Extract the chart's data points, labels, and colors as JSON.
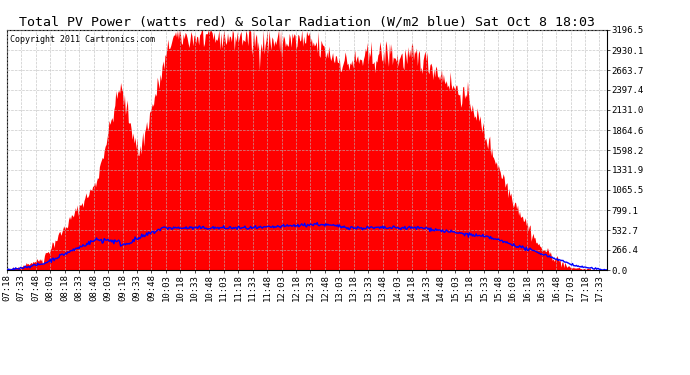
{
  "title": "Total PV Power (watts red) & Solar Radiation (W/m2 blue) Sat Oct 8 18:03",
  "copyright_text": "Copyright 2011 Cartronics.com",
  "yticks": [
    0.0,
    266.4,
    532.7,
    799.1,
    1065.5,
    1331.9,
    1598.2,
    1864.6,
    2131.0,
    2397.4,
    2663.7,
    2930.1,
    3196.5
  ],
  "ymax": 3196.5,
  "ymin": 0.0,
  "background_color": "#ffffff",
  "plot_bg_color": "#ffffff",
  "grid_color": "#bbbbbb",
  "red_color": "#ff0000",
  "blue_color": "#0000ff",
  "title_fontsize": 9.5,
  "tick_fontsize": 6.5,
  "copyright_fontsize": 6.0
}
